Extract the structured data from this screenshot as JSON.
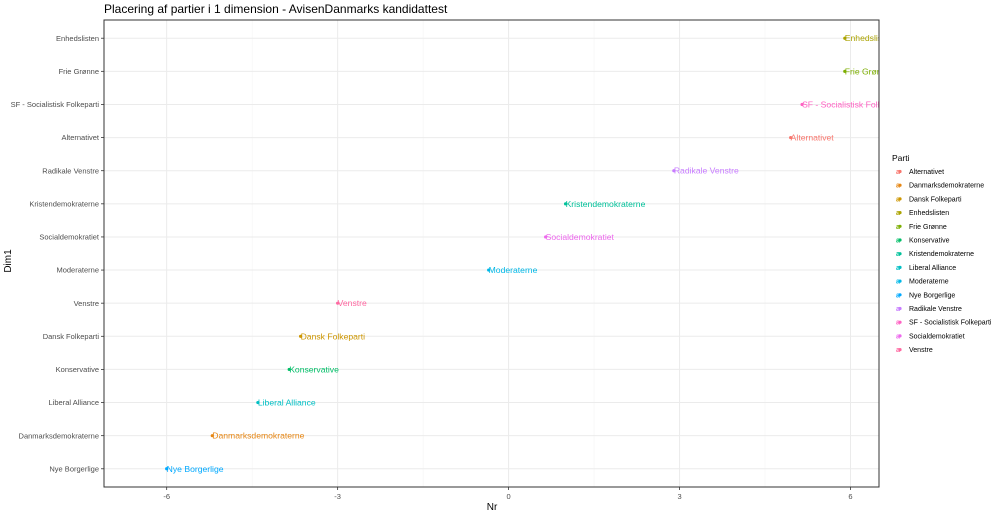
{
  "chart_data": {
    "type": "scatter",
    "title": "Placering af partier i 1 dimension - AvisenDanmarks kandidattest",
    "xlabel": "Nr",
    "ylabel": "Dim1",
    "xlim": [
      -7.1,
      6.5
    ],
    "x_ticks": [
      -6,
      -3,
      0,
      3,
      6
    ],
    "x_tick_labels": [
      "-6",
      "-3",
      "0",
      "3",
      "6"
    ],
    "categories": [
      "Nye Borgerlige",
      "Danmarksdemokraterne",
      "Liberal Alliance",
      "Konservative",
      "Dansk Folkeparti",
      "Venstre",
      "Moderaterne",
      "Socialdemokratiet",
      "Kristendemokraterne",
      "Radikale Venstre",
      "Alternativet",
      "SF - Socialistisk Folkeparti",
      "Frie Grønne",
      "Enhedslisten"
    ],
    "points": [
      {
        "party": "Nye Borgerlige",
        "x": -6.0,
        "color": "#00A9FF"
      },
      {
        "party": "Danmarksdemokraterne",
        "x": -5.2,
        "color": "#E68613"
      },
      {
        "party": "Liberal Alliance",
        "x": -4.4,
        "color": "#00BFC4"
      },
      {
        "party": "Konservative",
        "x": -3.85,
        "color": "#00BE67"
      },
      {
        "party": "Dansk Folkeparti",
        "x": -3.65,
        "color": "#CD9600"
      },
      {
        "party": "Venstre",
        "x": -3.0,
        "color": "#FF68A1"
      },
      {
        "party": "Moderaterne",
        "x": -0.35,
        "color": "#00B8E7"
      },
      {
        "party": "Socialdemokratiet",
        "x": 0.65,
        "color": "#ED68ED"
      },
      {
        "party": "Kristendemokraterne",
        "x": 1.0,
        "color": "#00C19A"
      },
      {
        "party": "Radikale Venstre",
        "x": 2.9,
        "color": "#C77CFF"
      },
      {
        "party": "Alternativet",
        "x": 4.95,
        "color": "#F8766D"
      },
      {
        "party": "SF - Socialistisk Folkeparti",
        "x": 5.15,
        "color": "#FF61C3"
      },
      {
        "party": "Frie Grønne",
        "x": 5.9,
        "color": "#7CAE00"
      },
      {
        "party": "Enhedslisten",
        "x": 5.9,
        "color": "#ABA300"
      }
    ],
    "legend": {
      "title": "Parti",
      "position": "right",
      "entries": [
        {
          "label": "Alternativet",
          "color": "#F8766D"
        },
        {
          "label": "Danmarksdemokraterne",
          "color": "#E68613"
        },
        {
          "label": "Dansk Folkeparti",
          "color": "#CD9600"
        },
        {
          "label": "Enhedslisten",
          "color": "#ABA300"
        },
        {
          "label": "Frie Grønne",
          "color": "#7CAE00"
        },
        {
          "label": "Konservative",
          "color": "#00BE67"
        },
        {
          "label": "Kristendemokraterne",
          "color": "#00C19A"
        },
        {
          "label": "Liberal Alliance",
          "color": "#00BFC4"
        },
        {
          "label": "Moderaterne",
          "color": "#00B8E7"
        },
        {
          "label": "Nye Borgerlige",
          "color": "#00A9FF"
        },
        {
          "label": "Radikale Venstre",
          "color": "#C77CFF"
        },
        {
          "label": "SF - Socialistisk Folkeparti",
          "color": "#FF61C3"
        },
        {
          "label": "Socialdemokratiet",
          "color": "#ED68ED"
        },
        {
          "label": "Venstre",
          "color": "#FF68A1"
        }
      ]
    },
    "grid": true,
    "panel_border_color": "#333333",
    "grid_color": "#ebebeb"
  }
}
